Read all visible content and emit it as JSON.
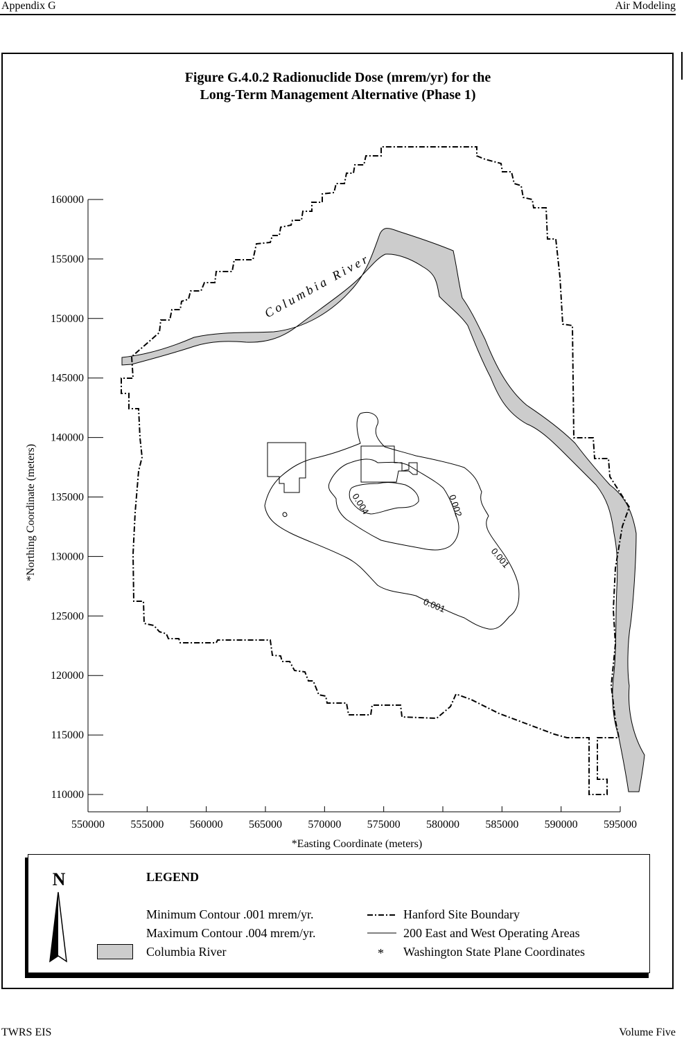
{
  "header": {
    "left": "Appendix G",
    "right": "Air Modeling"
  },
  "figure": {
    "title_line1": "Figure G.4.0.2  Radionuclide Dose (mrem/yr) for the",
    "title_line2": "Long-Term Management Alternative (Phase 1)"
  },
  "axes": {
    "x_label": "*Easting Coordinate (meters)",
    "y_label": "*Northing Coordinate (meters)",
    "x_ticks": [
      "550000",
      "555000",
      "560000",
      "565000",
      "570000",
      "575000",
      "580000",
      "585000",
      "590000",
      "595000"
    ],
    "y_ticks": [
      "160000",
      "155000",
      "150000",
      "145000",
      "140000",
      "135000",
      "130000",
      "125000",
      "120000",
      "115000",
      "110000"
    ]
  },
  "map_labels": {
    "river": "Columbia River",
    "contour_004": "0.004",
    "contour_002": "0.002",
    "contour_001_a": "0.001",
    "contour_001_b": "0.001"
  },
  "legend": {
    "north": "N",
    "title": "LEGEND",
    "min_contour": "Minimum Contour .001 mrem/yr.",
    "max_contour": "Maximum Contour .004 mrem/yr.",
    "river": "Columbia River",
    "boundary": "Hanford Site Boundary",
    "operating": "200 East and West Operating Areas",
    "asterisk": "*",
    "coords": "Washington State Plane Coordinates"
  },
  "footer": {
    "left": "TWRS EIS",
    "right": "Volume Five"
  },
  "colors": {
    "river_fill": "#cccccc",
    "line": "#000000"
  }
}
